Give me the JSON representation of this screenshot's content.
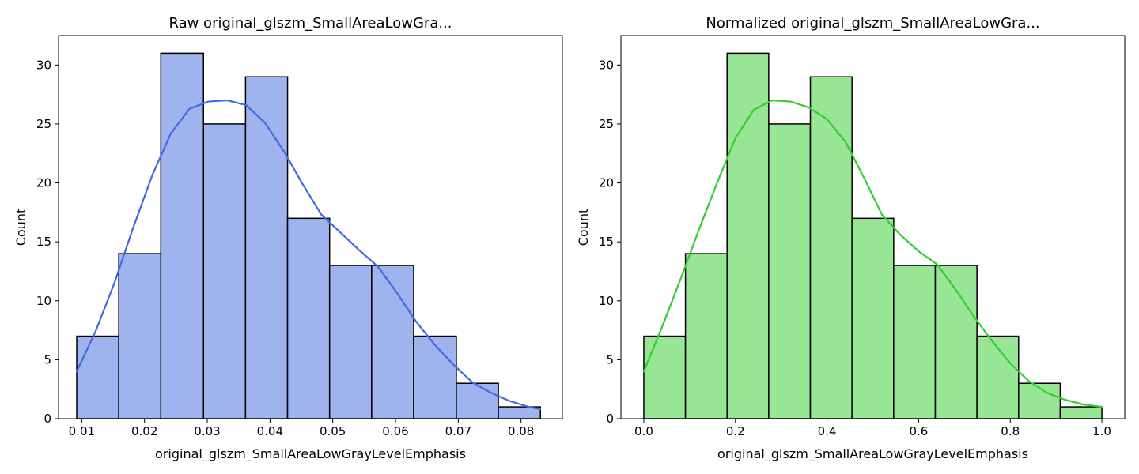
{
  "chart_data": [
    {
      "type": "bar",
      "title": "Raw original_glszm_SmallAreaLowGra...",
      "xlabel": "original_glszm_SmallAreaLowGrayLevelEmphasis",
      "ylabel": "Count",
      "xlim": [
        0.0063,
        0.0866
      ],
      "ylim": [
        0,
        32.5
      ],
      "xticks": [
        0.01,
        0.02,
        0.03,
        0.04,
        0.05,
        0.06,
        0.07,
        0.08
      ],
      "xtick_labels": [
        "0.01",
        "0.02",
        "0.03",
        "0.04",
        "0.05",
        "0.06",
        "0.07",
        "0.08"
      ],
      "yticks": [
        0,
        5,
        10,
        15,
        20,
        25,
        30
      ],
      "ytick_labels": [
        "0",
        "5",
        "10",
        "15",
        "20",
        "25",
        "30"
      ],
      "bin_edges": [
        0.0092,
        0.0159,
        0.0226,
        0.0294,
        0.0361,
        0.0428,
        0.0495,
        0.0562,
        0.0629,
        0.0697,
        0.0764,
        0.0831
      ],
      "values": [
        7,
        14,
        31,
        25,
        29,
        17,
        13,
        13,
        7,
        3,
        1
      ],
      "kde": {
        "x": [
          0.0092,
          0.0122,
          0.0152,
          0.0182,
          0.0212,
          0.0242,
          0.0272,
          0.0302,
          0.0332,
          0.0362,
          0.0392,
          0.0422,
          0.0452,
          0.0482,
          0.0512,
          0.0542,
          0.0572,
          0.0602,
          0.0632,
          0.0662,
          0.0692,
          0.0722,
          0.0752,
          0.0782,
          0.0812,
          0.0831
        ],
        "y": [
          4.0,
          7.4,
          11.5,
          16.2,
          20.6,
          24.2,
          26.3,
          26.9,
          27.0,
          26.6,
          25.1,
          22.7,
          19.9,
          17.3,
          15.8,
          14.3,
          12.9,
          10.7,
          8.3,
          6.3,
          4.6,
          3.1,
          2.2,
          1.5,
          1.0,
          0.8
        ]
      },
      "bar_color": "#9fb3ee",
      "kde_color": "#4169e1"
    },
    {
      "type": "bar",
      "title": "Normalized original_glszm_SmallAreaLowGra...",
      "xlabel": "original_glszm_SmallAreaLowGrayLevelEmphasis",
      "ylabel": "Count",
      "xlim": [
        -0.05,
        1.05
      ],
      "ylim": [
        0,
        32.5
      ],
      "xticks": [
        0.0,
        0.2,
        0.4,
        0.6,
        0.8,
        1.0
      ],
      "xtick_labels": [
        "0.0",
        "0.2",
        "0.4",
        "0.6",
        "0.8",
        "1.0"
      ],
      "yticks": [
        0,
        5,
        10,
        15,
        20,
        25,
        30
      ],
      "ytick_labels": [
        "0",
        "5",
        "10",
        "15",
        "20",
        "25",
        "30"
      ],
      "bin_edges": [
        0.0,
        0.0909,
        0.1818,
        0.2727,
        0.3636,
        0.4545,
        0.5455,
        0.6364,
        0.7273,
        0.8182,
        0.9091,
        1.0
      ],
      "values": [
        7,
        14,
        31,
        25,
        29,
        17,
        13,
        13,
        7,
        3,
        1
      ],
      "kde": {
        "x": [
          0.0,
          0.04,
          0.08,
          0.12,
          0.16,
          0.2,
          0.24,
          0.28,
          0.32,
          0.36,
          0.4,
          0.44,
          0.48,
          0.52,
          0.56,
          0.6,
          0.64,
          0.68,
          0.72,
          0.76,
          0.8,
          0.84,
          0.88,
          0.92,
          0.96,
          1.0
        ],
        "y": [
          4.0,
          7.8,
          11.8,
          16.0,
          20.0,
          23.8,
          26.2,
          27.0,
          26.9,
          26.4,
          25.4,
          23.5,
          20.5,
          17.3,
          15.6,
          14.2,
          13.1,
          11.0,
          8.7,
          6.6,
          4.7,
          3.2,
          2.2,
          1.6,
          1.2,
          1.0
        ]
      },
      "bar_color": "#98e596",
      "kde_color": "#32cd32"
    }
  ]
}
